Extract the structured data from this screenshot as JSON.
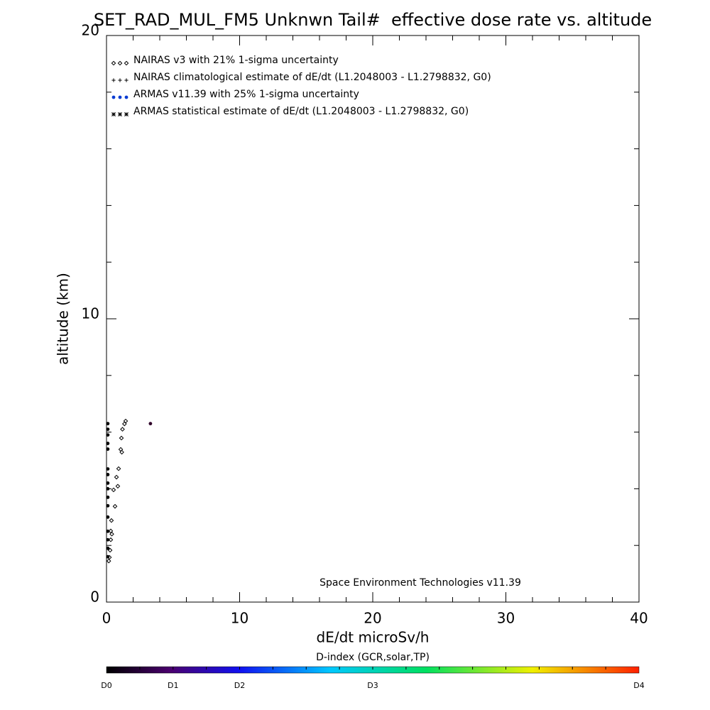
{
  "chart_data": {
    "type": "scatter",
    "title": "SET_RAD_MUL_FM5 Unknwn Tail#  effective dose rate vs. altitude",
    "x_label": "dE/dt microSv/h",
    "y_label": "altitude (km)",
    "annotation": "Space Environment Technologies v11.39",
    "xlim": [
      0,
      40
    ],
    "xticks": [
      0,
      10,
      20,
      30,
      40
    ],
    "ylim": [
      0,
      20
    ],
    "yticks": [
      0,
      10,
      20
    ],
    "series": [
      {
        "name": "NAIRAS v3 with 21% 1-sigma uncertainty",
        "marker": "diamond",
        "color": "#000000",
        "x": [
          1.44,
          1.35,
          1.2,
          1.12,
          1.07,
          1.15,
          0.91,
          0.75,
          0.85,
          0.53,
          0.64,
          0.37,
          0.32,
          0.4,
          0.32,
          0.27,
          0.22,
          0.17
        ],
        "values": [
          6.39,
          6.29,
          6.1,
          5.79,
          5.39,
          5.29,
          4.71,
          4.41,
          4.09,
          3.96,
          3.38,
          2.88,
          2.51,
          2.4,
          2.2,
          1.83,
          1.58,
          1.45
        ]
      },
      {
        "name": "NAIRAS climatological estimate of dE/dt (L1.2048003 - L1.2798832, G0)",
        "marker": "plus",
        "color": "#000000",
        "x": [],
        "values": []
      },
      {
        "name": "ARMAS v11.39 with 25% 1-sigma uncertainty",
        "marker": "dot",
        "color": "#0a3cd2",
        "point_color": "#000000",
        "x": [
          0.1,
          0.1,
          0.1,
          0.1,
          0.1,
          0.1,
          0.1,
          0.1,
          0.1,
          0.1,
          0.1,
          0.1,
          0.1,
          0.1,
          0.1,
          0.1,
          3.3
        ],
        "values": [
          6.3,
          6.1,
          5.9,
          5.6,
          5.4,
          4.7,
          4.5,
          4.2,
          4.0,
          3.7,
          3.4,
          3.0,
          2.5,
          2.2,
          1.9,
          1.6,
          6.3
        ],
        "point_colors": [
          "#000000",
          "#000000",
          "#000000",
          "#000000",
          "#000000",
          "#000000",
          "#000000",
          "#000000",
          "#000000",
          "#000000",
          "#000000",
          "#000000",
          "#000000",
          "#000000",
          "#000000",
          "#000000",
          "#30002a"
        ]
      },
      {
        "name": "ARMAS statistical estimate of dE/dt (L1.2048003 - L1.2798832, G0)",
        "marker": "asterisk",
        "color": "#000000",
        "x": [],
        "values": []
      }
    ],
    "colorbar": {
      "title": "D-index (GCR,solar,TP)",
      "labels": [
        "D0",
        "D1",
        "D2",
        "D3",
        "D4"
      ]
    }
  }
}
